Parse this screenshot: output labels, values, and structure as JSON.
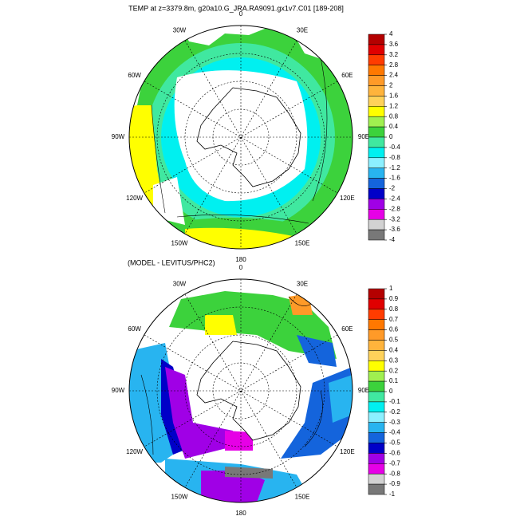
{
  "chart_data": [
    {
      "type": "map",
      "title": "TEMP at z=3379.8m, g20a10.G_JRA.RA9091.gx1v7.C01 [189-208]",
      "lon_labels": [
        "0",
        "30E",
        "60E",
        "90E",
        "120E",
        "150E",
        "180",
        "150W",
        "120W",
        "90W",
        "60W",
        "30W"
      ],
      "levels": [
        4,
        3.6,
        3.2,
        2.8,
        2.4,
        2,
        1.6,
        1.2,
        0.8,
        0.4,
        0,
        -0.4,
        -0.8,
        -1.2,
        -1.6,
        -2,
        -2.4,
        -2.8,
        -3.2,
        -3.6,
        -4
      ],
      "colors": [
        "#b40000",
        "#e00000",
        "#ff3c00",
        "#ff7800",
        "#ff9a28",
        "#ffb43c",
        "#ffd25a",
        "#ffff00",
        "#a0f050",
        "#3cd23c",
        "#40e8a0",
        "#00f0f0",
        "#8cf0ff",
        "#28b4f0",
        "#1464dc",
        "#0000c8",
        "#a000e6",
        "#e600e6",
        "#d2d2d2",
        "#787878"
      ]
    },
    {
      "type": "map",
      "title": "(MODEL - LEVITUS/PHC2)",
      "lon_labels": [
        "0",
        "30E",
        "60E",
        "90E",
        "120E",
        "150E",
        "180",
        "150W",
        "120W",
        "90W",
        "60W",
        "30W"
      ],
      "levels": [
        1,
        0.9,
        0.8,
        0.7,
        0.6,
        0.5,
        0.4,
        0.3,
        0.2,
        0.1,
        0,
        -0.1,
        -0.2,
        -0.3,
        -0.4,
        -0.5,
        -0.6,
        -0.7,
        -0.8,
        -0.9,
        -1
      ],
      "colors": [
        "#b40000",
        "#e00000",
        "#ff3c00",
        "#ff7800",
        "#ff9a28",
        "#ffb43c",
        "#ffd25a",
        "#ffff00",
        "#a0f050",
        "#3cd23c",
        "#40e8a0",
        "#00f0f0",
        "#8cf0ff",
        "#28b4f0",
        "#1464dc",
        "#0000c8",
        "#a000e6",
        "#e600e6",
        "#d2d2d2",
        "#787878"
      ]
    }
  ]
}
